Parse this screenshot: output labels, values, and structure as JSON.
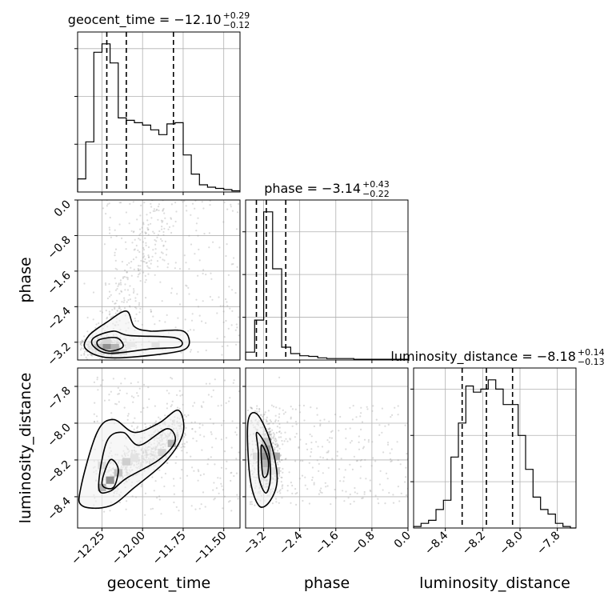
{
  "chart_data": {
    "type": "corner",
    "parameters": [
      "geocent_time",
      "phase",
      "luminosity_distance"
    ],
    "titles": {
      "geocent_time": {
        "label": "geocent_time = −12.10",
        "plus": "+0.29",
        "minus": "−0.12"
      },
      "phase": {
        "label": "phase = −3.14",
        "plus": "+0.43",
        "minus": "−0.22"
      },
      "luminosity_distance": {
        "label": "luminosity_distance = −8.18",
        "plus": "+0.14",
        "minus": "−0.13"
      }
    },
    "axes": {
      "geocent_time": {
        "range": [
          -12.4,
          -11.4
        ],
        "ticks": [
          -12.25,
          -12.0,
          -11.75,
          -11.5
        ],
        "tick_labels": [
          "−12.25",
          "−12.00",
          "−11.75",
          "−11.50"
        ]
      },
      "phase": {
        "range": [
          -3.6,
          0.0
        ],
        "ticks": [
          -3.2,
          -2.4,
          -1.6,
          -0.8,
          0.0
        ],
        "tick_labels": [
          "−3.2",
          "−2.4",
          "−1.6",
          "−0.8",
          "0.0"
        ]
      },
      "luminosity_distance": {
        "range": [
          -8.57,
          -7.7
        ],
        "ticks": [
          -8.4,
          -8.2,
          -8.0,
          -7.8
        ],
        "tick_labels": [
          "−8.4",
          "−8.2",
          "−8.0",
          "−7.8"
        ]
      }
    },
    "quantiles": {
      "geocent_time": [
        -12.22,
        -12.1,
        -11.81
      ],
      "phase": [
        -3.36,
        -3.14,
        -2.71
      ],
      "luminosity_distance": [
        -8.31,
        -8.18,
        -8.04
      ]
    },
    "histograms": {
      "geocent_time": {
        "edges": [
          -12.4,
          -12.35,
          -12.3,
          -12.25,
          -12.2,
          -12.15,
          -12.1,
          -12.05,
          -12.0,
          -11.95,
          -11.9,
          -11.85,
          -11.8,
          -11.75,
          -11.7,
          -11.65,
          -11.6,
          -11.55,
          -11.5,
          -11.45,
          -11.4
        ],
        "counts": [
          11,
          42,
          117,
          124,
          108,
          62,
          60,
          58,
          56,
          52,
          48,
          57,
          58,
          31,
          15,
          6,
          4,
          3,
          2,
          1
        ]
      },
      "phase": {
        "edges": [
          -3.6,
          -3.4,
          -3.2,
          -3.0,
          -2.8,
          -2.6,
          -2.4,
          -2.2,
          -2.0,
          -1.8,
          -1.6,
          -1.4,
          -1.2,
          -1.0,
          -0.8,
          -0.6,
          -0.4,
          -0.2,
          0.0
        ],
        "counts": [
          11,
          56,
          208,
          128,
          18,
          9,
          6,
          5,
          3,
          2,
          2,
          2,
          1,
          1,
          1,
          1,
          1,
          1
        ]
      },
      "luminosity_distance": {
        "edges": [
          -8.57,
          -8.53,
          -8.49,
          -8.45,
          -8.41,
          -8.37,
          -8.33,
          -8.29,
          -8.25,
          -8.21,
          -8.17,
          -8.13,
          -8.09,
          -8.05,
          -8.01,
          -7.97,
          -7.93,
          -7.89,
          -7.85,
          -7.81,
          -7.77,
          -7.73,
          -7.7
        ],
        "counts": [
          1,
          3,
          5,
          12,
          18,
          46,
          68,
          92,
          88,
          90,
          96,
          90,
          80,
          80,
          60,
          38,
          20,
          12,
          9,
          3,
          1,
          0
        ]
      }
    },
    "density_peaks": {
      "phase_vs_geocent_time": {
        "x": -12.22,
        "y": -3.3
      },
      "luminosity_distance_vs_geocent_time": {
        "x": -12.2,
        "y": -8.31
      },
      "luminosity_distance_vs_phase": {
        "x": -3.14,
        "y": -8.18
      }
    },
    "grid": true
  }
}
